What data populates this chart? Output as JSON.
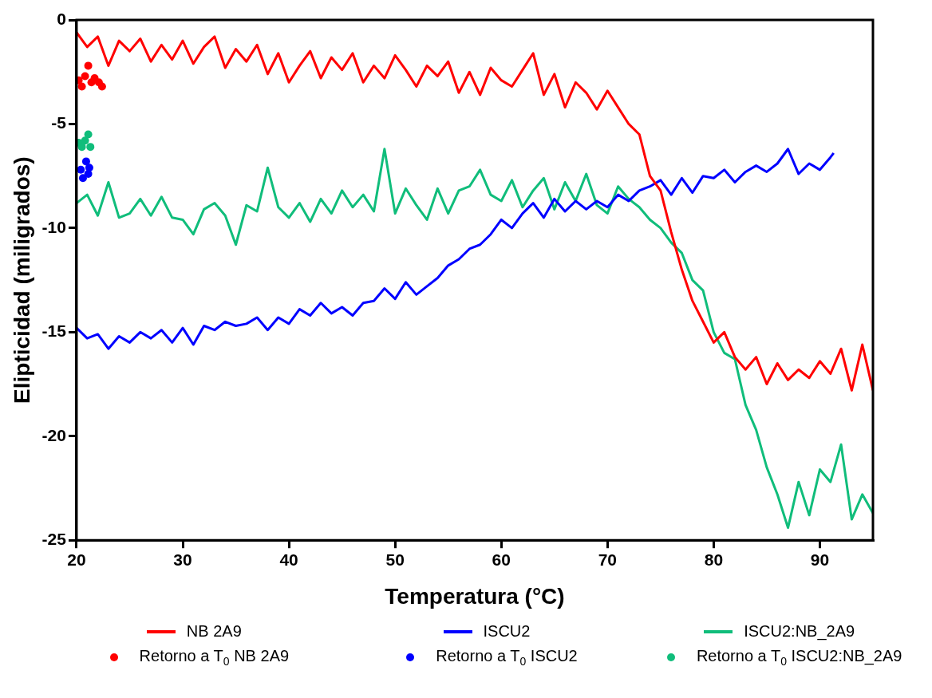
{
  "chart_data": {
    "type": "line",
    "xlabel": "Temperatura (°C)",
    "ylabel": "Elipticidad (miligrados)",
    "xlim": [
      20,
      95
    ],
    "xticks": [
      20,
      30,
      40,
      50,
      60,
      70,
      80,
      90
    ],
    "ylim": [
      -25,
      0
    ],
    "yticks": [
      -25,
      -20,
      -15,
      -10,
      -5,
      0
    ],
    "grid": false,
    "legend": "bottom",
    "marker": "none",
    "line_style": "solid",
    "series": [
      {
        "name": "NB 2A9",
        "color": "#ff0000",
        "x": [
          20,
          21,
          22,
          23,
          24,
          25,
          26,
          27,
          28,
          29,
          30,
          31,
          32,
          33,
          34,
          35,
          36,
          37,
          38,
          39,
          40,
          41,
          42,
          43,
          44,
          45,
          46,
          47,
          48,
          49,
          50,
          51,
          52,
          53,
          54,
          55,
          56,
          57,
          58,
          59,
          60,
          61,
          62,
          63,
          64,
          65,
          66,
          67,
          68,
          69,
          70,
          71,
          72,
          73,
          74,
          75,
          76,
          77,
          78,
          79,
          80,
          81,
          82,
          83,
          84,
          85,
          86,
          87,
          88,
          89,
          90,
          91,
          92,
          93,
          94,
          95
        ],
        "values": [
          -0.6,
          -1.3,
          -0.8,
          -2.2,
          -1.0,
          -1.5,
          -0.9,
          -2.0,
          -1.2,
          -1.9,
          -1.0,
          -2.1,
          -1.3,
          -0.8,
          -2.3,
          -1.4,
          -2.0,
          -1.2,
          -2.6,
          -1.6,
          -3.0,
          -2.2,
          -1.5,
          -2.8,
          -1.8,
          -2.4,
          -1.6,
          -3.0,
          -2.2,
          -2.8,
          -1.7,
          -2.4,
          -3.2,
          -2.2,
          -2.7,
          -2.0,
          -3.5,
          -2.5,
          -3.6,
          -2.3,
          -2.9,
          -3.2,
          -2.4,
          -1.6,
          -3.6,
          -2.6,
          -4.2,
          -3.0,
          -3.5,
          -4.3,
          -3.4,
          -4.2,
          -5.0,
          -5.5,
          -7.5,
          -8.2,
          -10.2,
          -12.0,
          -13.5,
          -14.5,
          -15.5,
          -15.0,
          -16.2,
          -16.8,
          -16.2,
          -17.5,
          -16.5,
          -17.3,
          -16.8,
          -17.2,
          -16.4,
          -17.0,
          -15.8,
          -17.8,
          -15.6,
          -17.8
        ]
      },
      {
        "name": "ISCU2",
        "color": "#0000ff",
        "x": [
          20,
          21,
          22,
          23,
          24,
          25,
          26,
          27,
          28,
          29,
          30,
          31,
          32,
          33,
          34,
          35,
          36,
          37,
          38,
          39,
          40,
          41,
          42,
          43,
          44,
          45,
          46,
          47,
          48,
          49,
          50,
          51,
          52,
          53,
          54,
          55,
          56,
          57,
          58,
          59,
          60,
          61,
          62,
          63,
          64,
          65,
          66,
          67,
          68,
          69,
          70,
          71,
          72,
          73,
          74,
          75,
          76,
          77,
          78,
          79,
          80,
          81,
          82,
          83,
          84,
          85,
          86,
          87,
          88,
          89,
          90,
          91,
          91.3
        ],
        "values": [
          -14.8,
          -15.3,
          -15.1,
          -15.8,
          -15.2,
          -15.5,
          -15.0,
          -15.3,
          -14.9,
          -15.5,
          -14.8,
          -15.6,
          -14.7,
          -14.9,
          -14.5,
          -14.7,
          -14.6,
          -14.3,
          -14.9,
          -14.3,
          -14.6,
          -13.9,
          -14.2,
          -13.6,
          -14.1,
          -13.8,
          -14.2,
          -13.6,
          -13.5,
          -12.9,
          -13.4,
          -12.6,
          -13.2,
          -12.8,
          -12.4,
          -11.8,
          -11.5,
          -11.0,
          -10.8,
          -10.3,
          -9.6,
          -10.0,
          -9.3,
          -8.8,
          -9.5,
          -8.6,
          -9.2,
          -8.7,
          -9.1,
          -8.7,
          -9.0,
          -8.4,
          -8.7,
          -8.2,
          -8.0,
          -7.7,
          -8.4,
          -7.6,
          -8.3,
          -7.5,
          -7.6,
          -7.2,
          -7.8,
          -7.3,
          -7.0,
          -7.3,
          -6.9,
          -6.2,
          -7.4,
          -6.9,
          -7.2,
          -6.6,
          -6.4
        ]
      },
      {
        "name": "ISCU2:NB_2A9",
        "color": "#10bd7b",
        "x": [
          20,
          21,
          22,
          23,
          24,
          25,
          26,
          27,
          28,
          29,
          30,
          31,
          32,
          33,
          34,
          35,
          36,
          37,
          38,
          39,
          40,
          41,
          42,
          43,
          44,
          45,
          46,
          47,
          48,
          49,
          50,
          51,
          52,
          53,
          54,
          55,
          56,
          57,
          58,
          59,
          60,
          61,
          62,
          63,
          64,
          65,
          66,
          67,
          68,
          69,
          70,
          71,
          72,
          73,
          74,
          75,
          76,
          77,
          78,
          79,
          80,
          81,
          82,
          83,
          84,
          85,
          86,
          87,
          88,
          89,
          90,
          91,
          92,
          93,
          94,
          95
        ],
        "values": [
          -8.8,
          -8.4,
          -9.4,
          -7.8,
          -9.5,
          -9.3,
          -8.6,
          -9.4,
          -8.5,
          -9.5,
          -9.6,
          -10.3,
          -9.1,
          -8.8,
          -9.4,
          -10.8,
          -8.9,
          -9.2,
          -7.1,
          -9.0,
          -9.5,
          -8.8,
          -9.7,
          -8.6,
          -9.3,
          -8.2,
          -9.0,
          -8.4,
          -9.2,
          -6.2,
          -9.3,
          -8.1,
          -8.9,
          -9.6,
          -8.1,
          -9.3,
          -8.2,
          -8.0,
          -7.2,
          -8.4,
          -8.7,
          -7.7,
          -9.0,
          -8.2,
          -7.6,
          -9.1,
          -7.8,
          -8.7,
          -7.4,
          -8.9,
          -9.3,
          -8.0,
          -8.6,
          -9.0,
          -9.6,
          -10.0,
          -10.7,
          -11.2,
          -12.5,
          -13.0,
          -15.0,
          -16.0,
          -16.3,
          -18.5,
          -19.7,
          -21.5,
          -22.8,
          -24.4,
          -22.2,
          -23.8,
          -21.6,
          -22.2,
          -20.4,
          -24.0,
          -22.8,
          -23.7
        ]
      },
      {
        "type": "scatter",
        "marker": "circle",
        "name": "Retorno a T$_{0}$ NB 2A9",
        "color": "#ff0000",
        "x": [
          20.2,
          20.5,
          20.8,
          21.1,
          21.4,
          21.7,
          22.1,
          22.4
        ],
        "values": [
          -2.9,
          -3.2,
          -2.7,
          -2.2,
          -3.0,
          -2.8,
          -3.0,
          -3.2
        ]
      },
      {
        "type": "scatter",
        "marker": "circle",
        "name": "Retorno a T$_{0}$ ISCU2",
        "color": "#0000ff",
        "x": [
          20.4,
          20.6,
          20.9,
          21.1,
          21.2
        ],
        "values": [
          -7.2,
          -7.6,
          -6.8,
          -7.4,
          -7.1
        ]
      },
      {
        "type": "scatter",
        "marker": "circle",
        "name": "Retorno a T$_{0}$ ISCU2:NB_2A9",
        "color": "#10bd7b",
        "x": [
          20.2,
          20.5,
          20.8,
          21.1,
          21.3
        ],
        "values": [
          -5.9,
          -6.1,
          -5.8,
          -5.5,
          -6.1
        ]
      }
    ]
  }
}
